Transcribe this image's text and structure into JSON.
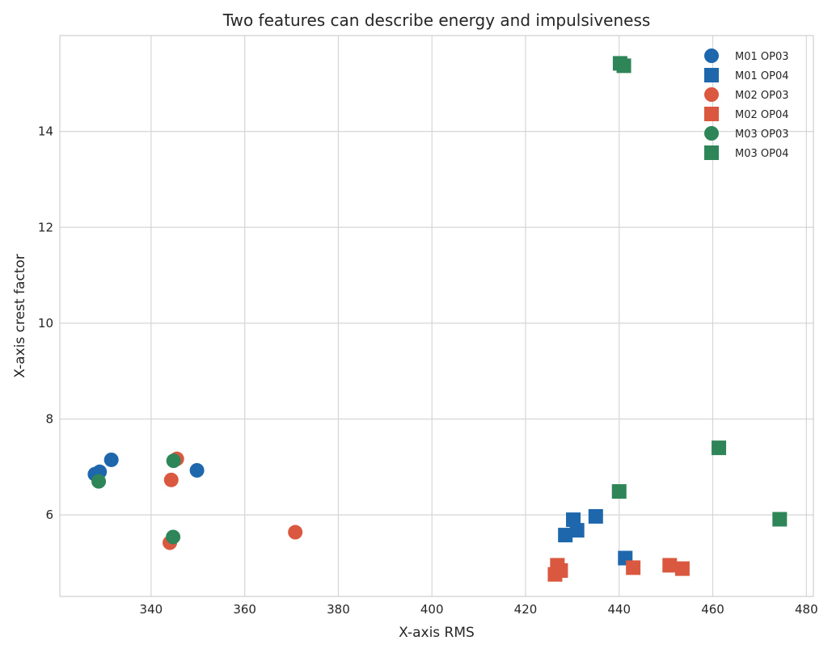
{
  "chart_data": {
    "type": "scatter",
    "title": "Two features can describe energy and impulsiveness",
    "xlabel": "X-axis RMS",
    "ylabel": "X-axis crest factor",
    "xlim": [
      320.5,
      481.5
    ],
    "ylim": [
      4.3,
      16.0
    ],
    "xticks": [
      340,
      360,
      380,
      400,
      420,
      440,
      460,
      480
    ],
    "yticks": [
      6,
      8,
      10,
      12,
      14
    ],
    "grid": true,
    "legend_position": "top-right",
    "series": [
      {
        "name": "M01 OP03",
        "marker": "circle",
        "color": "#1f67ad",
        "points": [
          [
            328.0,
            6.85
          ],
          [
            329.0,
            6.9
          ],
          [
            331.5,
            7.15
          ],
          [
            349.8,
            6.93
          ]
        ]
      },
      {
        "name": "M01 OP04",
        "marker": "square",
        "color": "#1f67ad",
        "points": [
          [
            428.5,
            5.58
          ],
          [
            430.2,
            5.9
          ],
          [
            431.0,
            5.68
          ],
          [
            435.0,
            5.97
          ],
          [
            441.3,
            5.1
          ]
        ]
      },
      {
        "name": "M02 OP03",
        "marker": "circle",
        "color": "#d9583f",
        "points": [
          [
            344.3,
            6.73
          ],
          [
            344.0,
            5.42
          ],
          [
            345.5,
            7.17
          ],
          [
            370.8,
            5.64
          ]
        ]
      },
      {
        "name": "M02 OP04",
        "marker": "square",
        "color": "#d9583f",
        "points": [
          [
            426.3,
            4.76
          ],
          [
            426.8,
            4.95
          ],
          [
            427.5,
            4.84
          ],
          [
            443.0,
            4.9
          ],
          [
            450.8,
            4.95
          ],
          [
            453.5,
            4.88
          ]
        ]
      },
      {
        "name": "M03 OP03",
        "marker": "circle",
        "color": "#2e8558",
        "points": [
          [
            328.8,
            6.7
          ],
          [
            344.8,
            7.13
          ],
          [
            344.7,
            5.54
          ]
        ]
      },
      {
        "name": "M03 OP04",
        "marker": "square",
        "color": "#2e8558",
        "points": [
          [
            440.0,
            6.49
          ],
          [
            440.2,
            15.42
          ],
          [
            441.0,
            15.37
          ],
          [
            461.3,
            7.4
          ],
          [
            474.3,
            5.91
          ]
        ]
      }
    ]
  }
}
